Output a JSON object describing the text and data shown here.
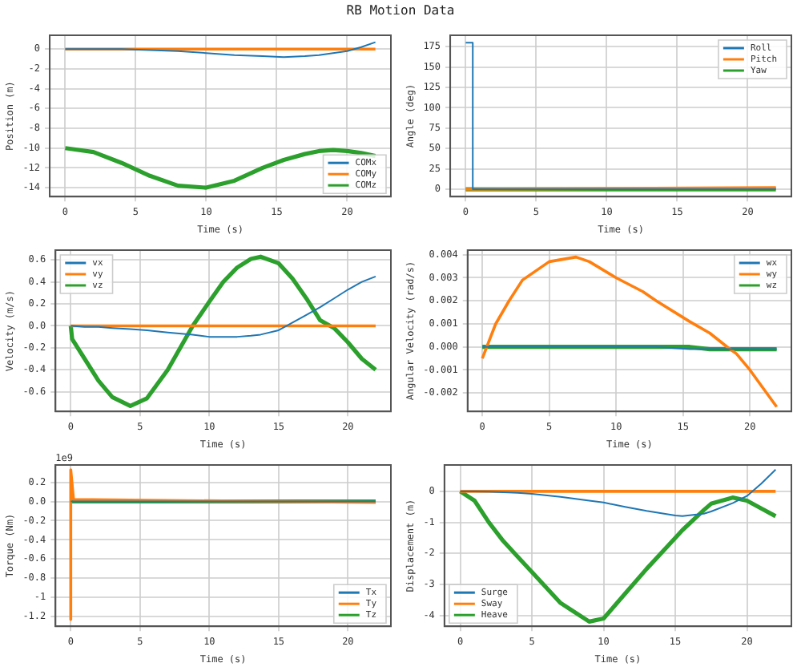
{
  "chart_data": [
    {
      "type": "line",
      "title": "RB Motion Data",
      "xlabel": "Time (s)",
      "ylabel": "Position (m)",
      "x": [
        0,
        2,
        4,
        6,
        8,
        10,
        12,
        14,
        15.5,
        17,
        18,
        19,
        20,
        21,
        22
      ],
      "xlim": [
        -1.1,
        23.1
      ],
      "xticks": [
        0,
        5,
        10,
        15,
        20
      ],
      "ylim": [
        -14.9,
        1.4
      ],
      "yticks": [
        0,
        -2,
        -4,
        -6,
        -8,
        -10,
        -12,
        -14
      ],
      "grid": true,
      "legend": "bottom right",
      "series": [
        {
          "name": "COMx",
          "color": "#1f77b4",
          "values": [
            0,
            0,
            0,
            -0.1,
            -0.2,
            -0.4,
            -0.6,
            -0.7,
            -0.8,
            -0.7,
            -0.6,
            -0.4,
            -0.2,
            0.2,
            0.7
          ]
        },
        {
          "name": "COMy",
          "color": "#ff7f0e",
          "values": [
            0,
            0,
            0,
            0,
            0,
            0,
            0,
            0,
            0,
            0,
            0,
            0,
            0,
            0,
            0
          ]
        },
        {
          "name": "COMz",
          "color": "#2ca02c",
          "values": [
            -10,
            -10.4,
            -11.5,
            -12.8,
            -13.8,
            -14,
            -13.3,
            -12,
            -11.2,
            -10.6,
            -10.3,
            -10.2,
            -10.3,
            -10.5,
            -10.8
          ]
        }
      ]
    },
    {
      "type": "line",
      "xlabel": "Time (s)",
      "ylabel": "Angle (deg)",
      "xlim": [
        -1.1,
        23.1
      ],
      "xticks": [
        0,
        5,
        10,
        15,
        20
      ],
      "ylim": [
        -9,
        189
      ],
      "yticks": [
        0,
        25,
        50,
        75,
        100,
        125,
        150,
        175
      ],
      "grid": true,
      "legend": "top right",
      "series": [
        {
          "name": "Roll",
          "color": "#1f77b4",
          "x": [
            0,
            0.5,
            0.5,
            22
          ],
          "values": [
            180,
            180,
            0,
            0
          ]
        },
        {
          "name": "Pitch",
          "color": "#ff7f0e",
          "x": [
            0,
            22
          ],
          "values": [
            0,
            2
          ]
        },
        {
          "name": "Yaw",
          "color": "#2ca02c",
          "x": [
            0,
            22
          ],
          "values": [
            0,
            0
          ]
        }
      ]
    },
    {
      "type": "line",
      "xlabel": "Time (s)",
      "ylabel": "Velocity (m/s)",
      "x": [
        0,
        0.1,
        1,
        2,
        3,
        4.3,
        5.5,
        7,
        8.8,
        10,
        11,
        12,
        13,
        13.7,
        15,
        16,
        17,
        18,
        19,
        20,
        21,
        22
      ],
      "xlim": [
        -1.1,
        23.1
      ],
      "xticks": [
        0,
        5,
        10,
        15,
        20
      ],
      "ylim": [
        -0.78,
        0.69
      ],
      "yticks": [
        -0.6,
        -0.4,
        -0.2,
        {
          "value": 0,
          "label": "0.0"
        },
        0.2,
        0.4,
        0.6
      ],
      "grid": true,
      "legend": "top left",
      "series": [
        {
          "name": "vx",
          "color": "#1f77b4",
          "values": [
            0,
            0,
            -0.01,
            -0.01,
            -0.02,
            -0.03,
            -0.04,
            -0.06,
            -0.08,
            -0.1,
            -0.1,
            -0.1,
            -0.09,
            -0.08,
            -0.04,
            0.03,
            0.1,
            0.17,
            0.25,
            0.33,
            0.4,
            0.45
          ]
        },
        {
          "name": "vy",
          "color": "#ff7f0e",
          "values": [
            0,
            0,
            0,
            0,
            0,
            0,
            0,
            0,
            0,
            0,
            0,
            0,
            0,
            0,
            0,
            0,
            0,
            0,
            0,
            0,
            0,
            0
          ]
        },
        {
          "name": "vz",
          "color": "#2ca02c",
          "values": [
            0,
            -0.12,
            -0.3,
            -0.5,
            -0.65,
            -0.73,
            -0.66,
            -0.4,
            0,
            0.22,
            0.4,
            0.53,
            0.61,
            0.63,
            0.57,
            0.43,
            0.25,
            0.05,
            -0.02,
            -0.15,
            -0.3,
            -0.4
          ]
        }
      ]
    },
    {
      "type": "line",
      "xlabel": "Time (s)",
      "ylabel": "Angular Velocity (rad/s)",
      "x": [
        0,
        1,
        2,
        3,
        5,
        7,
        8,
        10,
        12,
        13,
        15.5,
        17,
        18.3,
        19,
        20,
        21,
        22
      ],
      "xlim": [
        -1.1,
        23.1
      ],
      "xticks": [
        0,
        5,
        10,
        15,
        20
      ],
      "ylim": [
        -0.0028,
        0.0042
      ],
      "yticks": [
        {
          "value": -0.002,
          "label": "-0.002"
        },
        {
          "value": -0.001,
          "label": "-0.001"
        },
        {
          "value": 0,
          "label": "0.000"
        },
        {
          "value": 0.001,
          "label": "0.001"
        },
        {
          "value": 0.002,
          "label": "0.002"
        },
        {
          "value": 0.003,
          "label": "0.003"
        },
        {
          "value": 0.004,
          "label": "0.004"
        }
      ],
      "grid": true,
      "legend": "top right",
      "series": [
        {
          "name": "wx",
          "color": "#1f77b4",
          "values": [
            0,
            0,
            0,
            0,
            0,
            0,
            0,
            0,
            0,
            0,
            -0.0001,
            -0.0001,
            -0.0001,
            -0.0001,
            -0.0001,
            -0.0001,
            -0.0001
          ]
        },
        {
          "name": "wy",
          "color": "#ff7f0e",
          "values": [
            -0.0005,
            0.001,
            0.002,
            0.0029,
            0.0037,
            0.0039,
            0.0037,
            0.003,
            0.0024,
            0.002,
            0.0011,
            0.0006,
            0,
            -0.0003,
            -0.001,
            -0.0018,
            -0.0026
          ]
        },
        {
          "name": "wz",
          "color": "#2ca02c",
          "values": [
            0,
            0,
            0,
            0,
            0,
            0,
            0,
            0,
            0,
            0,
            0,
            -0.0001,
            -0.0001,
            -0.0001,
            -0.0001,
            -0.0001,
            -0.0001
          ]
        }
      ]
    },
    {
      "type": "line",
      "xlabel": "Time (s)",
      "ylabel": "Torque (Nm)",
      "annotations": [
        "1e9"
      ],
      "xlim": [
        -1.1,
        23.1
      ],
      "xticks": [
        0,
        5,
        10,
        15,
        20
      ],
      "ylim": [
        -1.3,
        0.38
      ],
      "yticks": [
        -1.2,
        -1,
        -0.8,
        -0.6,
        -0.4,
        -0.2,
        {
          "value": 0,
          "label": "0.0"
        },
        0.2
      ],
      "grid": true,
      "legend": "bottom right",
      "series": [
        {
          "name": "Tx",
          "color": "#1f77b4",
          "x": [
            0,
            22
          ],
          "values": [
            0,
            0
          ]
        },
        {
          "name": "Ty",
          "color": "#ff7f0e",
          "x": [
            0,
            0,
            0,
            0.2,
            22
          ],
          "values": [
            0,
            -1.23,
            0.33,
            0.02,
            -0.01
          ]
        },
        {
          "name": "Tz",
          "color": "#2ca02c",
          "x": [
            0,
            22
          ],
          "values": [
            0,
            0
          ]
        }
      ]
    },
    {
      "type": "line",
      "xlabel": "Time (s)",
      "ylabel": "Displacement (m)",
      "x": [
        0,
        1,
        2,
        3,
        4,
        5,
        7,
        9,
        10,
        11.5,
        13,
        15,
        15.5,
        17,
        17.5,
        19,
        20,
        21,
        22
      ],
      "xlim": [
        -1.1,
        23.1
      ],
      "xticks": [
        0,
        5,
        10,
        15,
        20
      ],
      "ylim": [
        -4.35,
        0.85
      ],
      "yticks": [
        -4,
        -3,
        -2,
        -1,
        0
      ],
      "grid": true,
      "legend": "bottom left",
      "series": [
        {
          "name": "Surge",
          "color": "#1f77b4",
          "values": [
            0,
            0,
            -0.01,
            -0.03,
            -0.05,
            -0.08,
            -0.18,
            -0.3,
            -0.36,
            -0.5,
            -0.63,
            -0.78,
            -0.8,
            -0.72,
            -0.65,
            -0.38,
            -0.15,
            0.25,
            0.7
          ]
        },
        {
          "name": "Sway",
          "color": "#ff7f0e",
          "values": [
            0,
            0,
            0,
            0,
            0,
            0,
            0,
            0,
            0,
            0,
            0,
            0,
            0,
            0,
            0,
            0,
            0,
            0,
            0
          ]
        },
        {
          "name": "Heave",
          "color": "#2ca02c",
          "values": [
            0,
            -0.3,
            -1,
            -1.6,
            -2.1,
            -2.6,
            -3.6,
            -4.2,
            -4.1,
            -3.3,
            -2.5,
            -1.5,
            -1.25,
            -0.6,
            -0.4,
            -0.2,
            -0.3,
            -0.55,
            -0.8
          ]
        }
      ]
    }
  ]
}
